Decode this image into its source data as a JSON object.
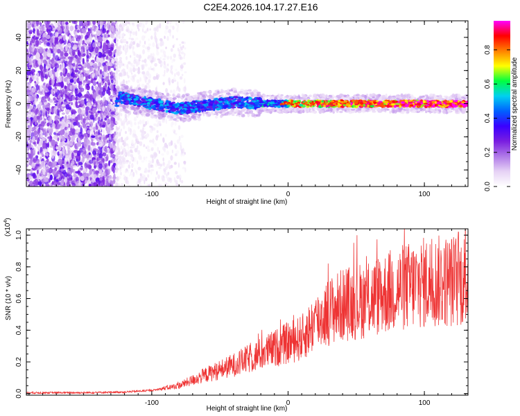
{
  "chart_data": [
    {
      "type": "heatmap",
      "title": "C2E4.2026.104.17.27.E16",
      "xlabel": "Height of straight line (km)",
      "ylabel": "Frequency (Hz)",
      "xlim": [
        -192,
        132
      ],
      "ylim": [
        -50,
        50
      ],
      "xticks": [
        -100,
        0,
        100
      ],
      "xtick_labels": [
        "-100",
        "0",
        "100"
      ],
      "yticks": [
        40,
        20,
        0,
        -20,
        -40
      ],
      "ytick_labels": [
        "40",
        "20",
        "0",
        "-20",
        "-40"
      ],
      "colorbar": {
        "label": "Normalized spectral amplitude",
        "range": [
          0,
          0.97
        ],
        "ticks": [
          0.0,
          0.2,
          0.4,
          0.6,
          0.8
        ],
        "tick_labels": [
          "0.0",
          "0.2",
          "0.4",
          "0.6",
          "0.8"
        ],
        "colormap": [
          "#ffffff",
          "#e6d2f5",
          "#b07ae8",
          "#7a1ee0",
          "#3a00ff",
          "#0060ff",
          "#00d0f0",
          "#00ff40",
          "#ffff00",
          "#ff8000",
          "#ff0000",
          "#ff00ff"
        ]
      },
      "regions": [
        {
          "name": "scattered noise",
          "x_range": [
            -192,
            -126
          ],
          "freq_range": [
            -50,
            50
          ],
          "amplitude": 0.25
        },
        {
          "name": "faint tail",
          "x_range": [
            -126,
            -75
          ],
          "freq_range": [
            -50,
            50
          ],
          "amplitude": 0.05
        },
        {
          "name": "signal band",
          "x_range": [
            -126,
            132
          ],
          "center_freq": 0,
          "half_width_hz": 4,
          "peak_amplitude": 0.95
        }
      ],
      "band_center_freq_hz": [
        {
          "x": -125,
          "f": 4
        },
        {
          "x": -100,
          "f": 0
        },
        {
          "x": -80,
          "f": -3
        },
        {
          "x": -60,
          "f": -1
        },
        {
          "x": -40,
          "f": 1
        },
        {
          "x": -20,
          "f": 0
        },
        {
          "x": 0,
          "f": 0
        },
        {
          "x": 50,
          "f": 0
        },
        {
          "x": 100,
          "f": 0
        },
        {
          "x": 130,
          "f": 0
        }
      ]
    },
    {
      "type": "line",
      "xlabel": "Height of straight line (km)",
      "ylabel": "SNR (10 * v/v)",
      "y_scale_label": "(x10^4)",
      "xlim": [
        -192,
        132
      ],
      "ylim": [
        -0.01,
        1.04
      ],
      "xticks": [
        -100,
        0,
        100
      ],
      "xtick_labels": [
        "-100",
        "0",
        "100"
      ],
      "yticks": [
        0.0,
        0.2,
        0.4,
        0.6,
        0.8,
        1.0
      ],
      "ytick_labels": [
        "0.0",
        "0.2",
        "0.4",
        "0.6",
        "0.8",
        "1.0"
      ],
      "series": [
        {
          "name": "SNR",
          "color": "#ee3333",
          "trend": [
            {
              "x": -192,
              "y": 0.005
            },
            {
              "x": -150,
              "y": 0.006
            },
            {
              "x": -120,
              "y": 0.01
            },
            {
              "x": -100,
              "y": 0.02
            },
            {
              "x": -80,
              "y": 0.05
            },
            {
              "x": -60,
              "y": 0.12
            },
            {
              "x": -40,
              "y": 0.18
            },
            {
              "x": -20,
              "y": 0.25
            },
            {
              "x": 0,
              "y": 0.32
            },
            {
              "x": 10,
              "y": 0.35
            },
            {
              "x": 20,
              "y": 0.45
            },
            {
              "x": 30,
              "y": 0.52
            },
            {
              "x": 40,
              "y": 0.56
            },
            {
              "x": 60,
              "y": 0.6
            },
            {
              "x": 80,
              "y": 0.66
            },
            {
              "x": 100,
              "y": 0.7
            },
            {
              "x": 132,
              "y": 0.72
            }
          ],
          "peak": {
            "x": 125,
            "y": 1.02
          }
        }
      ]
    }
  ]
}
